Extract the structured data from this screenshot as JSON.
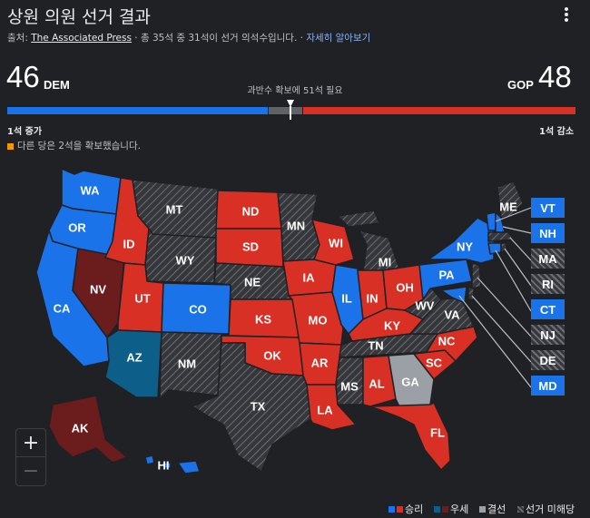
{
  "header": {
    "title": "상원 의원 선거 결과",
    "source_prefix": "출처: ",
    "source_link": "The Associated Press",
    "source_suffix": " · 총 35석 중 31석이 선거 의석수입니다. · ",
    "more_link": "자세히 알아보기"
  },
  "scoreboard": {
    "dem_seats": "46",
    "dem_label": "DEM",
    "gop_seats": "48",
    "gop_label": "GOP",
    "majority_text": "과반수 확보에 51석 필요",
    "dem_change": "1석 증가",
    "gop_change": "1석 감소",
    "other_note": "다른 당은 2석을 확보했습니다."
  },
  "colors": {
    "dem_win": "#1a73e8",
    "dem_lead": "#0d5f8a",
    "gop_win": "#d93025",
    "gop_lead": "#6b1c1c",
    "tossup": "#9aa0a6",
    "no_election": "#3c4043",
    "other": "#f29900",
    "background": "#202124"
  },
  "map": {
    "states": [
      {
        "code": "WA",
        "status": "dem_win"
      },
      {
        "code": "OR",
        "status": "dem_win"
      },
      {
        "code": "CA",
        "status": "dem_win"
      },
      {
        "code": "NV",
        "status": "gop_lead"
      },
      {
        "code": "ID",
        "status": "gop_win"
      },
      {
        "code": "MT",
        "status": "no_election"
      },
      {
        "code": "WY",
        "status": "no_election"
      },
      {
        "code": "UT",
        "status": "gop_win"
      },
      {
        "code": "AZ",
        "status": "dem_lead"
      },
      {
        "code": "CO",
        "status": "dem_win"
      },
      {
        "code": "NM",
        "status": "no_election"
      },
      {
        "code": "ND",
        "status": "gop_win"
      },
      {
        "code": "SD",
        "status": "gop_win"
      },
      {
        "code": "NE",
        "status": "no_election"
      },
      {
        "code": "KS",
        "status": "gop_win"
      },
      {
        "code": "OK",
        "status": "gop_win"
      },
      {
        "code": "TX",
        "status": "no_election"
      },
      {
        "code": "MN",
        "status": "no_election"
      },
      {
        "code": "IA",
        "status": "gop_win"
      },
      {
        "code": "MO",
        "status": "gop_win"
      },
      {
        "code": "AR",
        "status": "gop_win"
      },
      {
        "code": "LA",
        "status": "gop_win"
      },
      {
        "code": "WI",
        "status": "gop_win"
      },
      {
        "code": "IL",
        "status": "dem_win"
      },
      {
        "code": "MI",
        "status": "no_election"
      },
      {
        "code": "IN",
        "status": "gop_win"
      },
      {
        "code": "OH",
        "status": "gop_win"
      },
      {
        "code": "KY",
        "status": "gop_win"
      },
      {
        "code": "TN",
        "status": "no_election"
      },
      {
        "code": "MS",
        "status": "no_election"
      },
      {
        "code": "AL",
        "status": "gop_win"
      },
      {
        "code": "GA",
        "status": "tossup"
      },
      {
        "code": "FL",
        "status": "gop_win"
      },
      {
        "code": "SC",
        "status": "gop_win"
      },
      {
        "code": "NC",
        "status": "gop_win"
      },
      {
        "code": "VA",
        "status": "no_election"
      },
      {
        "code": "WV",
        "status": "no_election"
      },
      {
        "code": "PA",
        "status": "dem_win"
      },
      {
        "code": "NY",
        "status": "dem_win"
      },
      {
        "code": "ME",
        "status": "no_election"
      },
      {
        "code": "AK",
        "status": "gop_lead"
      },
      {
        "code": "HI",
        "status": "dem_win"
      }
    ],
    "small_states": [
      {
        "code": "VT",
        "status": "dem_win"
      },
      {
        "code": "NH",
        "status": "dem_win"
      },
      {
        "code": "MA",
        "status": "no_election"
      },
      {
        "code": "RI",
        "status": "no_election"
      },
      {
        "code": "CT",
        "status": "dem_win"
      },
      {
        "code": "NJ",
        "status": "no_election"
      },
      {
        "code": "DE",
        "status": "no_election"
      },
      {
        "code": "MD",
        "status": "dem_win"
      }
    ]
  },
  "zoom": {
    "in": "+",
    "out": "−"
  },
  "legend": {
    "win": "승리",
    "lead": "우세",
    "tossup": "결선",
    "none": "선거 미해당"
  }
}
